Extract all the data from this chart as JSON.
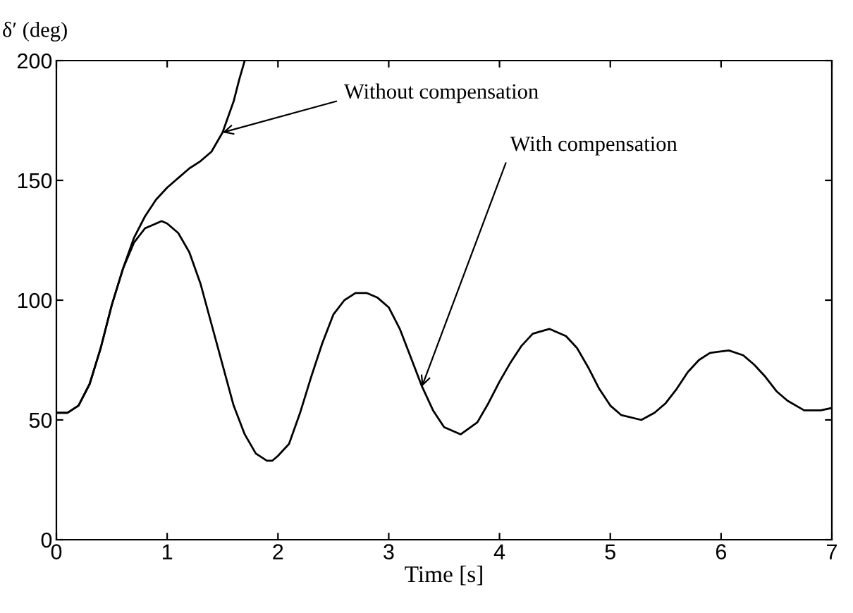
{
  "chart_data": {
    "type": "line",
    "xlabel": "Time [s]",
    "ylabel": "δ′ (deg)",
    "xlim": [
      0,
      7
    ],
    "ylim": [
      0,
      200
    ],
    "xticks": [
      0,
      1,
      2,
      3,
      4,
      5,
      6,
      7
    ],
    "yticks": [
      0,
      50,
      100,
      150,
      200
    ],
    "grid": false,
    "legend": false,
    "series": [
      {
        "color": "#000000",
        "x": [
          0,
          0.1,
          0.2,
          0.3,
          0.4,
          0.5,
          0.6,
          0.7,
          0.8,
          0.9,
          1.0,
          1.1,
          1.2,
          1.3,
          1.4,
          1.5,
          1.6,
          1.65,
          1.7
        ],
        "values": [
          53,
          53,
          56,
          65,
          80,
          98,
          113,
          126,
          135,
          142,
          147,
          151,
          155,
          158,
          162,
          170,
          183,
          192,
          200
        ]
      },
      {
        "color": "#000000",
        "x": [
          0,
          0.1,
          0.2,
          0.3,
          0.4,
          0.5,
          0.6,
          0.7,
          0.8,
          0.9,
          0.95,
          1.0,
          1.1,
          1.2,
          1.3,
          1.4,
          1.5,
          1.6,
          1.7,
          1.8,
          1.9,
          1.95,
          2.0,
          2.1,
          2.2,
          2.3,
          2.4,
          2.5,
          2.6,
          2.7,
          2.8,
          2.9,
          3.0,
          3.1,
          3.2,
          3.3,
          3.4,
          3.5,
          3.65,
          3.8,
          3.9,
          4.0,
          4.1,
          4.2,
          4.3,
          4.45,
          4.6,
          4.7,
          4.8,
          4.9,
          5.0,
          5.1,
          5.28,
          5.4,
          5.5,
          5.6,
          5.7,
          5.8,
          5.9,
          6.07,
          6.2,
          6.3,
          6.4,
          6.5,
          6.6,
          6.75,
          6.9,
          7.0
        ],
        "values": [
          53,
          53,
          56,
          65,
          80,
          98,
          113,
          124,
          130,
          132,
          133,
          132,
          128,
          120,
          107,
          90,
          73,
          56,
          44,
          36,
          33,
          33,
          35,
          40,
          53,
          68,
          82,
          94,
          100,
          103,
          103,
          101,
          97,
          88,
          76,
          64,
          54,
          47,
          44,
          49,
          57,
          66,
          74,
          81,
          86,
          88,
          85,
          80,
          72,
          63,
          56,
          52,
          50,
          53,
          57,
          63,
          70,
          75,
          78,
          79,
          77,
          73,
          68,
          62,
          58,
          54,
          54,
          55
        ]
      }
    ],
    "annotations": [
      {
        "text": "Without compensation",
        "x": 1.5,
        "y": 170
      },
      {
        "text": "With compensation",
        "x": 3.3,
        "y": 64
      }
    ]
  }
}
